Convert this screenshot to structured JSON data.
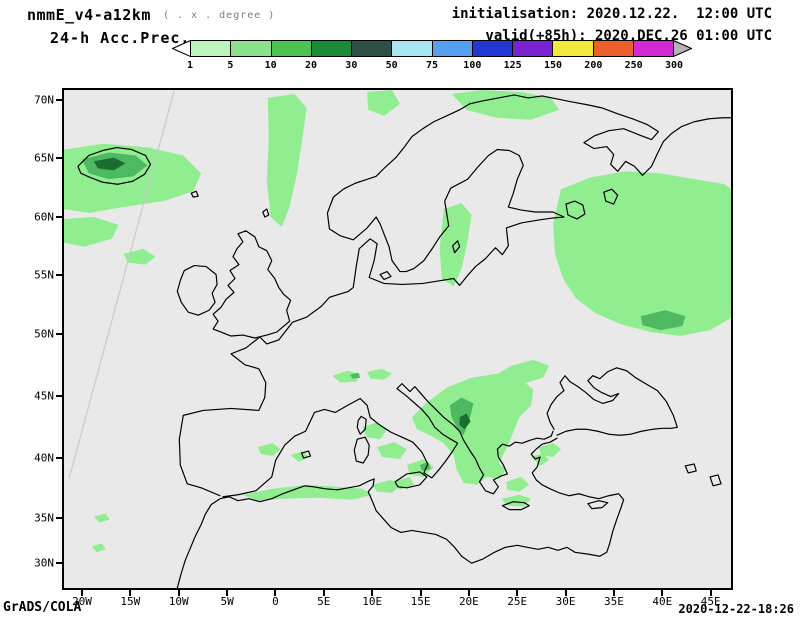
{
  "header": {
    "model": "nmmE_v4-a12km",
    "grid_note": "( . x . degree )",
    "product": "24-h Acc.Prec.",
    "init": "initialisation: 2020.12.22.  12:00 UTC",
    "valid": "valid(+85h): 2020.DEC.26 01:00 UTC"
  },
  "colorbar": {
    "labels": [
      "1",
      "5",
      "10",
      "20",
      "30",
      "50",
      "75",
      "100",
      "125",
      "150",
      "200",
      "250",
      "300"
    ],
    "colors": [
      "#bdf3bd",
      "#8ce28c",
      "#4fc24f",
      "#1d8a35",
      "#2d4f46",
      "#a8e6f2",
      "#55a1f0",
      "#2238d2",
      "#7a22d2",
      "#f2ea3c",
      "#ee5f2e",
      "#d22ad2"
    ],
    "under_color": "#ffffff",
    "over_color": "#b4b4b4"
  },
  "map": {
    "x_ticks": [
      "20W",
      "15W",
      "10W",
      "5W",
      "0",
      "5E",
      "10E",
      "15E",
      "20E",
      "25E",
      "30E",
      "35E",
      "40E",
      "45E"
    ],
    "y_ticks": [
      "70N",
      "65N",
      "60N",
      "55N",
      "50N",
      "45N",
      "40N",
      "35N",
      "30N"
    ],
    "background": "#e9e9e9",
    "coastline": "#000000",
    "precip_light": "#90ee90",
    "precip_medium": "#4fb863",
    "precip_dark": "#1c6e30"
  },
  "footer": {
    "brand": "GrADS/COLA",
    "timestamp": "2020-12-22-18:26"
  }
}
